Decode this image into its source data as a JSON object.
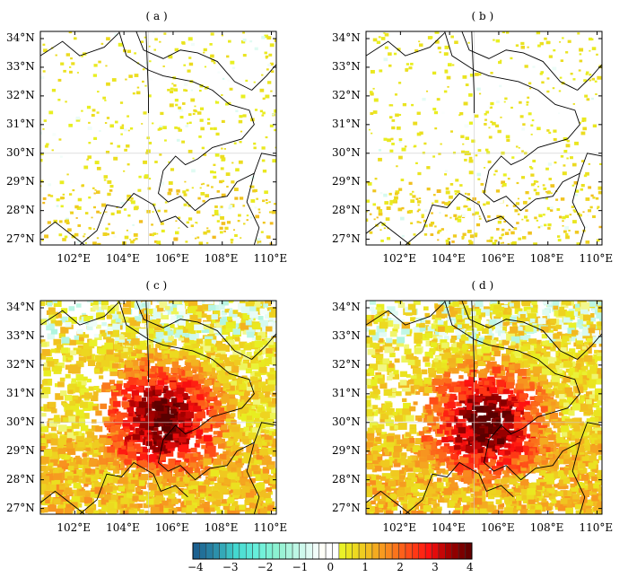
{
  "panels": [
    {
      "label": "( a )",
      "intensity": 0.05
    },
    {
      "label": "( b )",
      "intensity": 0.07
    },
    {
      "label": "( c )",
      "intensity": 1.0
    },
    {
      "label": "( d )",
      "intensity": 1.0
    }
  ],
  "lat_ticks": [
    "27°N",
    "28°N",
    "29°N",
    "30°N",
    "31°N",
    "32°N",
    "33°N",
    "34°N"
  ],
  "lon_ticks": [
    "102°E",
    "104°E",
    "106°E",
    "108°E",
    "110°E"
  ],
  "lat_values": [
    27,
    28,
    29,
    30,
    31,
    32,
    33,
    34
  ],
  "lon_values": [
    102,
    104,
    106,
    108,
    110
  ],
  "lon_range": [
    100.6,
    110.2
  ],
  "lat_range": [
    26.8,
    34.25
  ],
  "colorbar": {
    "ticks": [
      "−4",
      "−3",
      "−2",
      "−1",
      "0",
      "1",
      "2",
      "3",
      "4"
    ],
    "tick_values": [
      -4,
      -3,
      -2,
      -1,
      0,
      1,
      2,
      3,
      4
    ],
    "range": [
      -4,
      4
    ],
    "stops": [
      "#1a5a8c",
      "#2a8aa8",
      "#44d8d0",
      "#68f0dc",
      "#90f2d0",
      "#c8f8ea",
      "#ffffff",
      "#e8f020",
      "#f0c820",
      "#f89020",
      "#ff5018",
      "#ff1010",
      "#a00000",
      "#5a0000"
    ]
  }
}
